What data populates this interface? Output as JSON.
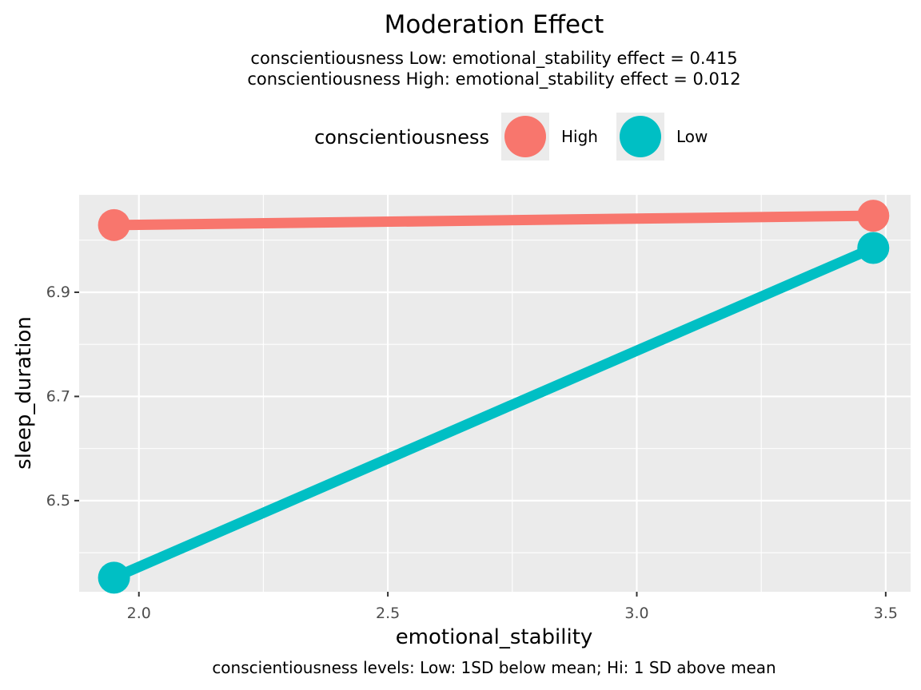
{
  "chart_data": {
    "type": "line",
    "title": "Moderation Effect",
    "subtitle": [
      "conscientiousness Low: emotional_stability effect = 0.415",
      "conscientiousness High: emotional_stability effect = 0.012"
    ],
    "xlabel": "emotional_stability",
    "ylabel": "sleep_duration",
    "caption": "conscientiousness levels: Low: 1SD below mean; Hi: 1 SD above mean",
    "xlim": [
      1.88,
      3.55
    ],
    "ylim": [
      6.325,
      7.087
    ],
    "x_ticks": [
      2.0,
      2.5,
      3.0,
      3.5
    ],
    "x_tick_labels": [
      "2.0",
      "2.5",
      "3.0",
      "3.5"
    ],
    "y_ticks": [
      6.5,
      6.7,
      6.9
    ],
    "y_tick_labels": [
      "6.5",
      "6.7",
      "6.9"
    ],
    "grid": true,
    "legend": {
      "title": "conscientiousness",
      "position": "top"
    },
    "series": [
      {
        "name": "High",
        "color": "#F8766D",
        "x": [
          1.95,
          3.475
        ],
        "y": [
          7.029,
          7.047
        ]
      },
      {
        "name": "Low",
        "color": "#00BFC4",
        "x": [
          1.95,
          3.475
        ],
        "y": [
          6.352,
          6.985
        ]
      }
    ]
  }
}
